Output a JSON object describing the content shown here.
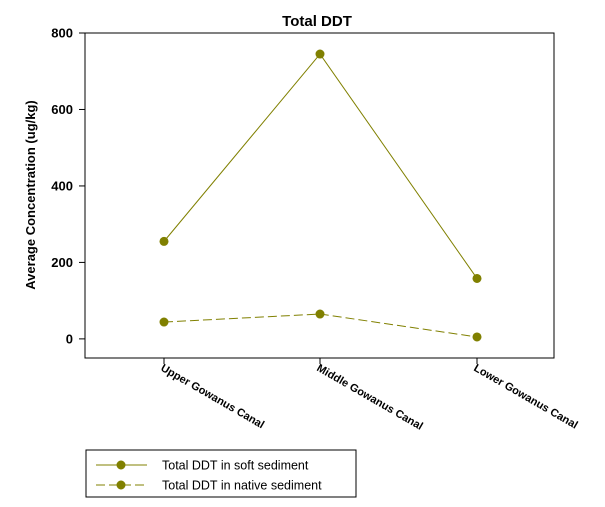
{
  "chart_data": {
    "type": "line",
    "title": "Total DDT",
    "xlabel": "",
    "ylabel": "Average Concentration (ug/kg)",
    "categories": [
      "Upper Gowanus Canal",
      "Middle Gowanus Canal",
      "Lower Gowanus Canal"
    ],
    "ylim": [
      -50,
      800
    ],
    "yticks": [
      0,
      200,
      400,
      600,
      800
    ],
    "ytick_labels": [
      "0",
      "200",
      "400",
      "600",
      "800"
    ],
    "grid": false,
    "legend_position": "bottom-left",
    "series": [
      {
        "name": "Total DDT in soft sediment",
        "values": [
          255,
          745,
          158
        ],
        "line_style": "solid",
        "marker": "circle",
        "color": "#808000"
      },
      {
        "name": "Total DDT in native sediment",
        "values": [
          44,
          65,
          5
        ],
        "line_style": "dashed",
        "marker": "circle",
        "color": "#808000"
      }
    ]
  }
}
